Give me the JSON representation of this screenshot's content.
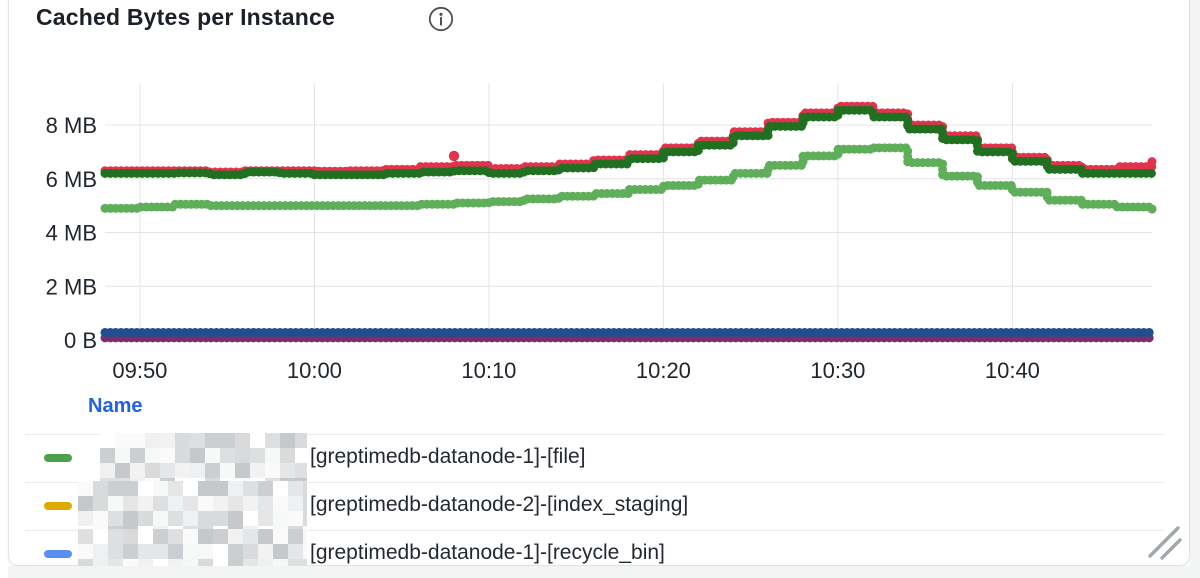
{
  "panel": {
    "title": "Cached Bytes per Instance"
  },
  "chart_data": {
    "type": "line",
    "style": "dotted-step",
    "grid": true,
    "title": "Cached Bytes per Instance",
    "x_axis": {
      "range": [
        "09:48",
        "10:48"
      ],
      "tick_labels": [
        "09:50",
        "10:00",
        "10:10",
        "10:20",
        "10:30",
        "10:40"
      ]
    },
    "y_axis": {
      "tick_labels": [
        "8 MB",
        "6 MB",
        "4 MB",
        "2 MB",
        "0 B"
      ],
      "tick_values_mb": [
        8,
        6,
        4,
        2,
        0
      ],
      "range_mb": [
        0,
        9.6
      ]
    },
    "sample_step_min": 2,
    "series": [
      {
        "id": "light-green",
        "color": "#5fae5a",
        "t_step_min": 2,
        "values_mb": [
          4.9,
          4.95,
          5.05,
          5.0,
          5.0,
          5.0,
          5.0,
          5.0,
          5.0,
          5.05,
          5.1,
          5.15,
          5.25,
          5.35,
          5.45,
          5.6,
          5.75,
          5.95,
          6.2,
          6.5,
          6.85,
          7.1,
          7.15,
          6.6,
          6.1,
          5.75,
          5.5,
          5.2,
          5.05,
          4.95,
          4.85
        ]
      },
      {
        "id": "red",
        "color": "#e1344c",
        "t_step_min": 2,
        "values_mb": [
          6.3,
          6.3,
          6.3,
          6.25,
          6.3,
          6.3,
          6.28,
          6.3,
          6.35,
          6.45,
          6.5,
          6.38,
          6.45,
          6.55,
          6.7,
          6.9,
          7.15,
          7.4,
          7.75,
          8.1,
          8.45,
          8.7,
          8.45,
          8.0,
          7.6,
          7.15,
          6.8,
          6.5,
          6.35,
          6.45,
          6.65
        ]
      },
      {
        "id": "dark-green",
        "color": "#217021",
        "t_step_min": 2,
        "values_mb": [
          6.2,
          6.2,
          6.22,
          6.15,
          6.25,
          6.2,
          6.15,
          6.15,
          6.2,
          6.25,
          6.3,
          6.2,
          6.3,
          6.4,
          6.55,
          6.75,
          7.0,
          7.25,
          7.6,
          7.95,
          8.3,
          8.55,
          8.3,
          7.85,
          7.45,
          7.0,
          6.65,
          6.35,
          6.2,
          6.2,
          6.2
        ]
      },
      {
        "id": "purple",
        "color": "#7b2d6e",
        "t_step_min": 60,
        "values_mb": [
          0.08,
          0.08
        ]
      },
      {
        "id": "navy",
        "color": "#234e8d",
        "t_step_min": 60,
        "values_mb": [
          0.28,
          0.28
        ]
      }
    ],
    "outlier_point": {
      "series": "red",
      "t_min": 20,
      "value_mb": 6.85,
      "color": "#e1344c"
    }
  },
  "legend": {
    "header": "Name",
    "rows": [
      {
        "color": "#4ba24b",
        "prefix_redacted": true,
        "label": "[greptimedb-datanode-1]-[file]"
      },
      {
        "color": "#dcab00",
        "prefix_redacted": true,
        "label": "[greptimedb-datanode-2]-[index_staging]"
      },
      {
        "color": "#5a8ff2",
        "prefix_redacted": true,
        "label": "[greptimedb-datanode-1]-[recycle_bin]"
      }
    ]
  }
}
